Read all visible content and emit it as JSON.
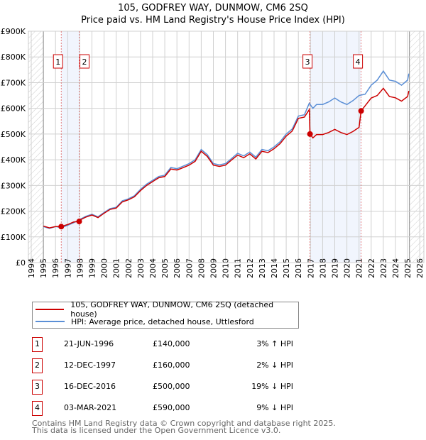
{
  "chart_data": {
    "type": "line",
    "title": "105, GODFREY WAY, DUNMOW, CM6 2SQ",
    "subtitle": "Price paid vs. HM Land Registry's House Price Index (HPI)",
    "xlim": [
      1994,
      2026
    ],
    "ylim": [
      0,
      900000
    ],
    "y_ticks": [
      {
        "v": 0,
        "label": "£0"
      },
      {
        "v": 100000,
        "label": "£100K"
      },
      {
        "v": 200000,
        "label": "£200K"
      },
      {
        "v": 300000,
        "label": "£300K"
      },
      {
        "v": 400000,
        "label": "£400K"
      },
      {
        "v": 500000,
        "label": "£500K"
      },
      {
        "v": 600000,
        "label": "£600K"
      },
      {
        "v": 700000,
        "label": "£700K"
      },
      {
        "v": 800000,
        "label": "£800K"
      },
      {
        "v": 900000,
        "label": "£900K"
      }
    ],
    "x_ticks": [
      "1994",
      "1995",
      "1996",
      "1997",
      "1998",
      "1999",
      "2000",
      "2001",
      "2002",
      "2003",
      "2004",
      "2005",
      "2006",
      "2007",
      "2008",
      "2009",
      "2010",
      "2011",
      "2012",
      "2013",
      "2014",
      "2015",
      "2016",
      "2017",
      "2018",
      "2019",
      "2020",
      "2021",
      "2022",
      "2023",
      "2024",
      "2025",
      "2026"
    ],
    "grid": true,
    "series": [
      {
        "name": "105, GODFREY WAY, DUNMOW, CM6 2SQ (detached house)",
        "color": "#cc0000",
        "x": [
          1995,
          1995.5,
          1996,
          1996.47,
          1997,
          1997.5,
          1997.95,
          1998,
          1998.5,
          1999,
          1999.5,
          2000,
          2000.5,
          2001,
          2001.5,
          2002,
          2002.5,
          2003,
          2003.5,
          2004,
          2004.5,
          2005,
          2005.5,
          2006,
          2006.5,
          2007,
          2007.5,
          2008,
          2008.5,
          2009,
          2009.5,
          2010,
          2010.5,
          2011,
          2011.5,
          2012,
          2012.5,
          2013,
          2013.5,
          2014,
          2014.5,
          2015,
          2015.5,
          2016,
          2016.5,
          2016.9,
          2016.96,
          2017.2,
          2017.5,
          2018,
          2018.5,
          2019,
          2019.5,
          2020,
          2020.5,
          2021,
          2021.17,
          2021.5,
          2022,
          2022.5,
          2023,
          2023.5,
          2024,
          2024.5,
          2025,
          2025.1
        ],
        "y": [
          142,
          135,
          140,
          140,
          148,
          158,
          160,
          165,
          177,
          185,
          175,
          192,
          207,
          212,
          236,
          244,
          256,
          280,
          300,
          315,
          330,
          335,
          364,
          360,
          369,
          379,
          394,
          433,
          413,
          379,
          374,
          379,
          399,
          418,
          408,
          423,
          403,
          433,
          428,
          443,
          463,
          492,
          512,
          561,
          566,
          595,
          500,
          485,
          498,
          498,
          506,
          518,
          506,
          498,
          510,
          526,
          590,
          610,
          640,
          650,
          678,
          646,
          641,
          628,
          646,
          668
        ]
      },
      {
        "name": "HPI: Average price, detached house, Uttlesford",
        "color": "#5b8fd6",
        "x": [
          1995,
          1995.5,
          1996,
          1996.5,
          1997,
          1997.5,
          1998,
          1998.5,
          1999,
          1999.5,
          2000,
          2000.5,
          2001,
          2001.5,
          2002,
          2002.5,
          2003,
          2003.5,
          2004,
          2004.5,
          2005,
          2005.5,
          2006,
          2006.5,
          2007,
          2007.5,
          2008,
          2008.5,
          2009,
          2009.5,
          2010,
          2010.5,
          2011,
          2011.5,
          2012,
          2012.5,
          2013,
          2013.5,
          2014,
          2014.5,
          2015,
          2015.5,
          2016,
          2016.5,
          2016.9,
          2017.2,
          2017.5,
          2018,
          2018.5,
          2019,
          2019.5,
          2020,
          2020.5,
          2021,
          2021.5,
          2022,
          2022.5,
          2023,
          2023.5,
          2024,
          2024.5,
          2025,
          2025.1
        ],
        "y": [
          140,
          133,
          140,
          136,
          145,
          155,
          168,
          180,
          188,
          178,
          195,
          210,
          215,
          240,
          248,
          260,
          285,
          305,
          320,
          335,
          340,
          370,
          365,
          375,
          385,
          400,
          440,
          420,
          385,
          380,
          385,
          405,
          425,
          415,
          430,
          410,
          440,
          435,
          450,
          470,
          500,
          520,
          570,
          575,
          620,
          600,
          615,
          615,
          625,
          640,
          625,
          615,
          630,
          650,
          655,
          690,
          710,
          745,
          710,
          705,
          690,
          710,
          735
        ]
      }
    ],
    "y_unit": "thousands GBP",
    "sales": [
      {
        "id": "1",
        "x": 1996.47,
        "y": 140,
        "date": "21-JUN-1996",
        "price": "£140,000",
        "hpi": "3% ↑ HPI"
      },
      {
        "id": "2",
        "x": 1997.95,
        "y": 160,
        "date": "12-DEC-1997",
        "price": "£160,000",
        "hpi": "2% ↓ HPI"
      },
      {
        "id": "3",
        "x": 2016.96,
        "y": 500,
        "date": "16-DEC-2016",
        "price": "£500,000",
        "hpi": "19% ↓ HPI"
      },
      {
        "id": "4",
        "x": 2021.17,
        "y": 590,
        "date": "03-MAR-2021",
        "price": "£590,000",
        "hpi": "9% ↓ HPI"
      }
    ],
    "legend_position": "below"
  },
  "footer": [
    "Contains HM Land Registry data © Crown copyright and database right 2025.",
    "This data is licensed under the Open Government Licence v3.0."
  ]
}
